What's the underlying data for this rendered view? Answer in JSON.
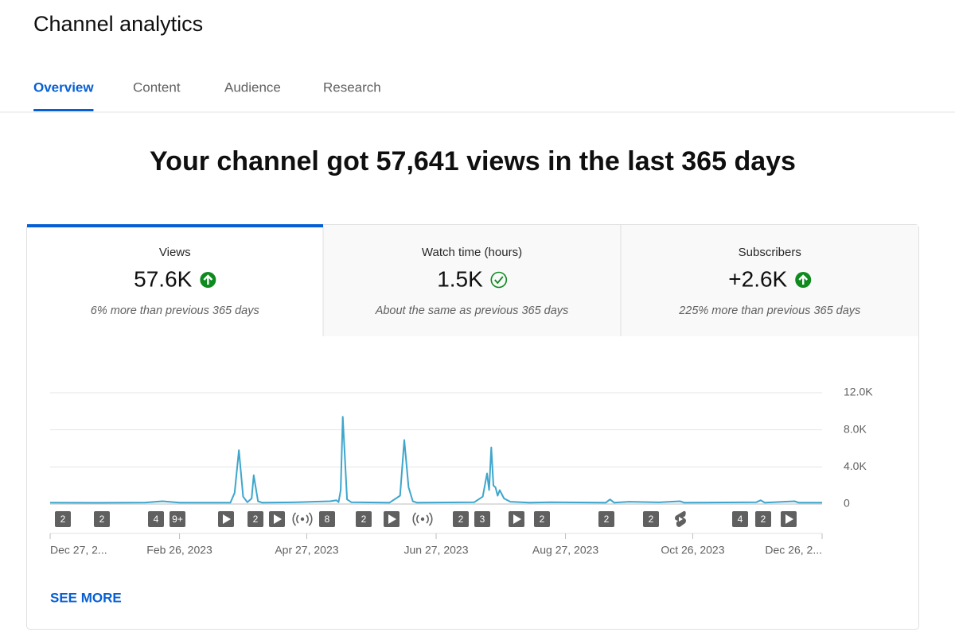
{
  "header": {
    "title": "Channel analytics",
    "tabs": [
      "Overview",
      "Content",
      "Audience",
      "Research"
    ],
    "active_tab": 0
  },
  "headline": "Your channel got 57,641 views in the last 365 days",
  "metrics": [
    {
      "label": "Views",
      "value": "57.6K",
      "trend": "up",
      "note": "6% more than previous 365 days"
    },
    {
      "label": "Watch time (hours)",
      "value": "1.5K",
      "trend": "same",
      "note": "About the same as previous 365 days"
    },
    {
      "label": "Subscribers",
      "value": "+2.6K",
      "trend": "up",
      "note": "225% more than previous 365 days"
    }
  ],
  "chart_data": {
    "type": "line",
    "color": "#3ea6cc",
    "x": [
      "2022-12-27",
      "2023-01-15",
      "2023-02-10",
      "2023-02-18",
      "2023-02-26",
      "2023-03-22",
      "2023-03-24",
      "2023-03-26",
      "2023-03-28",
      "2023-03-30",
      "2023-04-01",
      "2023-04-02",
      "2023-04-04",
      "2023-04-06",
      "2023-04-20",
      "2023-05-08",
      "2023-05-11",
      "2023-05-12",
      "2023-05-13",
      "2023-05-14",
      "2023-05-16",
      "2023-05-18",
      "2023-06-05",
      "2023-06-10",
      "2023-06-12",
      "2023-06-14",
      "2023-06-16",
      "2023-06-18",
      "2023-07-15",
      "2023-07-19",
      "2023-07-21",
      "2023-07-22",
      "2023-07-23",
      "2023-07-24",
      "2023-07-25",
      "2023-07-26",
      "2023-07-27",
      "2023-07-29",
      "2023-08-01",
      "2023-08-10",
      "2023-08-20",
      "2023-09-15",
      "2023-09-17",
      "2023-09-19",
      "2023-09-26",
      "2023-10-10",
      "2023-10-20",
      "2023-10-22",
      "2023-11-25",
      "2023-11-27",
      "2023-11-29",
      "2023-12-13",
      "2023-12-15",
      "2023-12-26"
    ],
    "values": [
      150,
      140,
      160,
      300,
      150,
      150,
      1200,
      5800,
      800,
      200,
      600,
      3100,
      300,
      150,
      180,
      300,
      400,
      200,
      1500,
      9400,
      500,
      200,
      150,
      900,
      6900,
      1800,
      300,
      150,
      200,
      800,
      3300,
      1500,
      6100,
      2000,
      1800,
      900,
      1500,
      600,
      250,
      150,
      200,
      150,
      500,
      150,
      250,
      180,
      300,
      150,
      200,
      400,
      150,
      300,
      150,
      150
    ],
    "xlim": [
      "2022-12-27",
      "2023-12-26"
    ],
    "xticks": [
      {
        "value": "2022-12-27",
        "label": "Dec 27, 2..."
      },
      {
        "value": "2023-02-26",
        "label": "Feb 26, 2023"
      },
      {
        "value": "2023-04-27",
        "label": "Apr 27, 2023"
      },
      {
        "value": "2023-06-27",
        "label": "Jun 27, 2023"
      },
      {
        "value": "2023-08-27",
        "label": "Aug 27, 2023"
      },
      {
        "value": "2023-10-26",
        "label": "Oct 26, 2023"
      },
      {
        "value": "2023-12-26",
        "label": "Dec 26, 2..."
      }
    ],
    "ylim": [
      0,
      12000
    ],
    "yticks": [
      0,
      {
        "value": 4000,
        "label": "4.0K"
      },
      {
        "value": 8000,
        "label": "8.0K"
      },
      {
        "value": 12000,
        "label": "12.0K"
      }
    ],
    "grid": true
  },
  "content_markers": [
    {
      "kind": "count",
      "label": "2"
    },
    {
      "kind": "count",
      "label": "2"
    },
    {
      "kind": "count",
      "label": "4"
    },
    {
      "kind": "count",
      "label": "9+"
    },
    {
      "kind": "play"
    },
    {
      "kind": "count",
      "label": "2"
    },
    {
      "kind": "play"
    },
    {
      "kind": "live"
    },
    {
      "kind": "count",
      "label": "8"
    },
    {
      "kind": "count",
      "label": "2"
    },
    {
      "kind": "play"
    },
    {
      "kind": "live"
    },
    {
      "kind": "count",
      "label": "2"
    },
    {
      "kind": "count",
      "label": "3"
    },
    {
      "kind": "play"
    },
    {
      "kind": "count",
      "label": "2"
    },
    {
      "kind": "count",
      "label": "2"
    },
    {
      "kind": "count",
      "label": "2"
    },
    {
      "kind": "shorts"
    },
    {
      "kind": "count",
      "label": "4"
    },
    {
      "kind": "count",
      "label": "2"
    },
    {
      "kind": "play"
    }
  ],
  "see_more": "SEE MORE"
}
